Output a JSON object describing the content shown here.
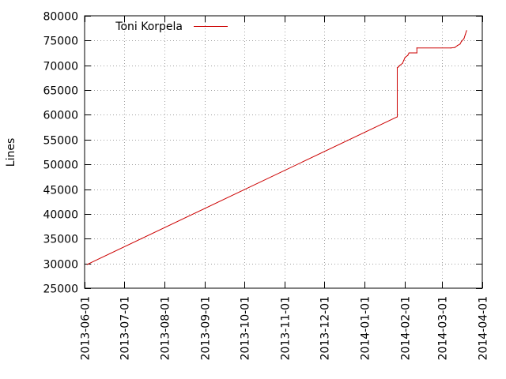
{
  "chart_data": {
    "type": "line",
    "title": "",
    "xlabel": "",
    "ylabel": "Lines",
    "ylim": [
      25000,
      80000
    ],
    "xlim": [
      "2013-06-01",
      "2014-04-01"
    ],
    "yticks": [
      25000,
      30000,
      35000,
      40000,
      45000,
      50000,
      55000,
      60000,
      65000,
      70000,
      75000,
      80000
    ],
    "xticks": [
      "2013-06-01",
      "2013-07-01",
      "2013-08-01",
      "2013-09-01",
      "2013-10-01",
      "2013-11-01",
      "2013-12-01",
      "2014-01-01",
      "2014-02-01",
      "2014-03-01",
      "2014-04-01"
    ],
    "grid": true,
    "legend": "top-left",
    "series": [
      {
        "name": "Toni Korpela",
        "color": "#cc0000",
        "points": [
          [
            "2013-06-03",
            29800
          ],
          [
            "2014-01-26",
            59600
          ],
          [
            "2014-01-26",
            69500
          ],
          [
            "2014-01-27",
            69700
          ],
          [
            "2014-01-28",
            70000
          ],
          [
            "2014-01-30",
            70400
          ],
          [
            "2014-01-31",
            71000
          ],
          [
            "2014-02-01",
            71600
          ],
          [
            "2014-02-03",
            72000
          ],
          [
            "2014-02-04",
            72500
          ],
          [
            "2014-02-10",
            72500
          ],
          [
            "2014-02-10",
            73500
          ],
          [
            "2014-03-08",
            73500
          ],
          [
            "2014-03-11",
            73600
          ],
          [
            "2014-03-13",
            74000
          ],
          [
            "2014-03-15",
            74300
          ],
          [
            "2014-03-16",
            74800
          ],
          [
            "2014-03-18",
            75400
          ],
          [
            "2014-03-19",
            76200
          ],
          [
            "2014-03-20",
            77000
          ]
        ]
      }
    ]
  }
}
